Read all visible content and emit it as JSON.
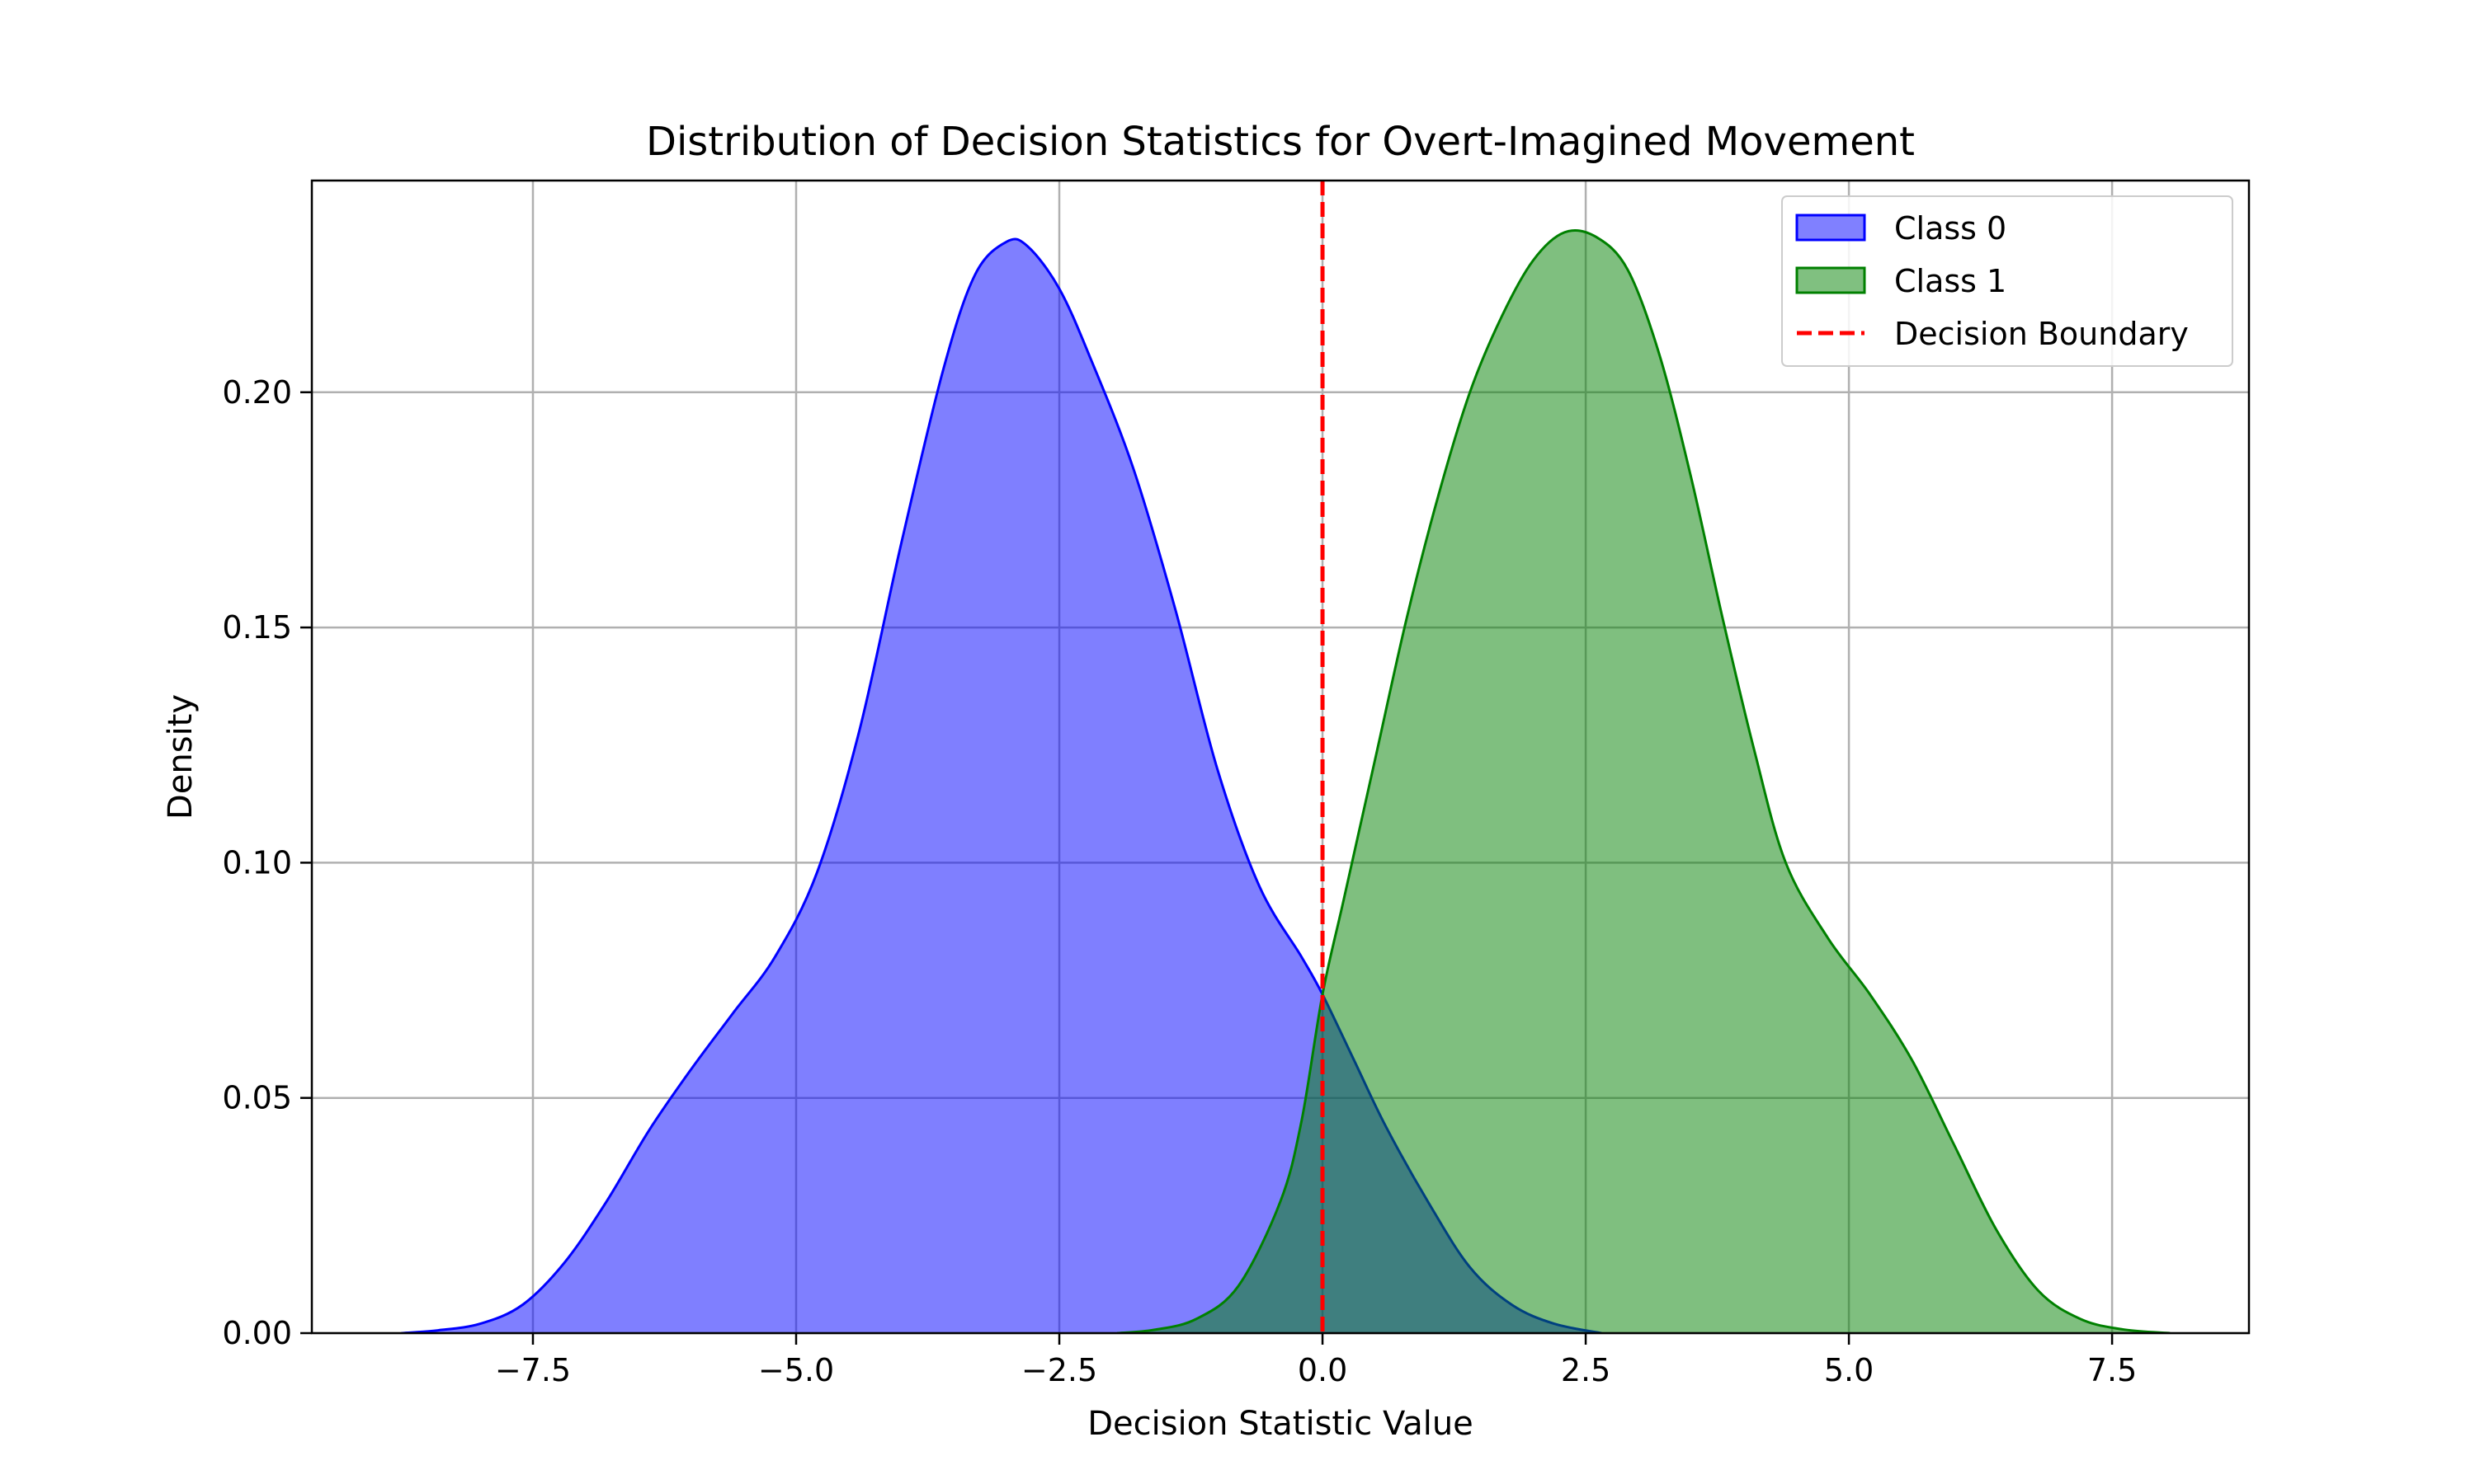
{
  "chart_data": {
    "type": "area",
    "title": "Distribution of Decision Statistics for Overt-Imagined Movement",
    "xlabel": "Decision Statistic Value",
    "ylabel": "Density",
    "xlim": [
      -9.6,
      8.8
    ],
    "ylim": [
      0,
      0.245
    ],
    "x_ticks": [
      -7.5,
      -5.0,
      -2.5,
      0.0,
      2.5,
      5.0,
      7.5
    ],
    "x_tick_labels": [
      "−7.5",
      "−5.0",
      "−2.5",
      "0.0",
      "2.5",
      "5.0",
      "7.5"
    ],
    "y_ticks": [
      0.0,
      0.05,
      0.1,
      0.15,
      0.2
    ],
    "y_tick_labels": [
      "0.00",
      "0.05",
      "0.10",
      "0.15",
      "0.20"
    ],
    "grid": true,
    "legend_position": "top-right",
    "series": [
      {
        "name": "Class 0",
        "fill_color": "#0000ff",
        "fill_opacity": 0.5,
        "line_color": "#0000ff",
        "points": [
          [
            -8.75,
            0.0
          ],
          [
            -8.4,
            0.0006
          ],
          [
            -8.0,
            0.002
          ],
          [
            -7.6,
            0.006
          ],
          [
            -7.2,
            0.015
          ],
          [
            -6.8,
            0.028
          ],
          [
            -6.4,
            0.043
          ],
          [
            -6.0,
            0.056
          ],
          [
            -5.6,
            0.068
          ],
          [
            -5.2,
            0.08
          ],
          [
            -4.8,
            0.098
          ],
          [
            -4.4,
            0.128
          ],
          [
            -4.0,
            0.168
          ],
          [
            -3.6,
            0.205
          ],
          [
            -3.3,
            0.225
          ],
          [
            -3.0,
            0.232
          ],
          [
            -2.8,
            0.231
          ],
          [
            -2.5,
            0.222
          ],
          [
            -2.2,
            0.207
          ],
          [
            -1.8,
            0.184
          ],
          [
            -1.4,
            0.154
          ],
          [
            -1.0,
            0.12
          ],
          [
            -0.6,
            0.095
          ],
          [
            -0.2,
            0.08
          ],
          [
            0.0,
            0.072
          ],
          [
            0.3,
            0.058
          ],
          [
            0.6,
            0.044
          ],
          [
            1.0,
            0.028
          ],
          [
            1.4,
            0.014
          ],
          [
            1.8,
            0.006
          ],
          [
            2.2,
            0.002
          ],
          [
            2.65,
            0.0
          ]
        ]
      },
      {
        "name": "Class 1",
        "fill_color": "#008000",
        "fill_opacity": 0.5,
        "line_color": "#008000",
        "points": [
          [
            -1.95,
            0.0
          ],
          [
            -1.6,
            0.0007
          ],
          [
            -1.2,
            0.003
          ],
          [
            -0.8,
            0.01
          ],
          [
            -0.4,
            0.028
          ],
          [
            -0.2,
            0.045
          ],
          [
            0.0,
            0.072
          ],
          [
            0.2,
            0.092
          ],
          [
            0.5,
            0.122
          ],
          [
            0.8,
            0.152
          ],
          [
            1.1,
            0.178
          ],
          [
            1.4,
            0.2
          ],
          [
            1.7,
            0.216
          ],
          [
            2.0,
            0.228
          ],
          [
            2.3,
            0.234
          ],
          [
            2.6,
            0.233
          ],
          [
            2.9,
            0.226
          ],
          [
            3.2,
            0.208
          ],
          [
            3.5,
            0.182
          ],
          [
            3.8,
            0.152
          ],
          [
            4.1,
            0.124
          ],
          [
            4.4,
            0.1
          ],
          [
            4.8,
            0.084
          ],
          [
            5.2,
            0.072
          ],
          [
            5.6,
            0.058
          ],
          [
            6.0,
            0.04
          ],
          [
            6.4,
            0.022
          ],
          [
            6.8,
            0.009
          ],
          [
            7.2,
            0.003
          ],
          [
            7.6,
            0.0008
          ],
          [
            8.05,
            0.0
          ]
        ]
      }
    ],
    "vlines": [
      {
        "name": "Decision Boundary",
        "x": 0.0,
        "color": "#ff0000",
        "dash": true
      }
    ]
  },
  "legend": {
    "items": [
      {
        "label": "Class 0",
        "kind": "patch",
        "fill": "#8080ff",
        "edge": "#0000ff"
      },
      {
        "label": "Class 1",
        "kind": "patch",
        "fill": "#80c080",
        "edge": "#008000"
      },
      {
        "label": "Decision Boundary",
        "kind": "dashed-line",
        "color": "#ff0000"
      }
    ]
  }
}
